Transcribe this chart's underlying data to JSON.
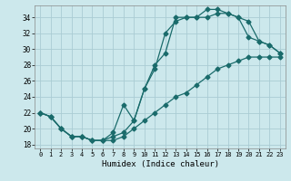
{
  "xlabel": "Humidex (Indice chaleur)",
  "bg_color": "#cce8ec",
  "grid_color": "#aaccd4",
  "line_color": "#1a6b6b",
  "xlim": [
    -0.5,
    23.5
  ],
  "ylim": [
    17.5,
    35.5
  ],
  "xticks": [
    0,
    1,
    2,
    3,
    4,
    5,
    6,
    7,
    8,
    9,
    10,
    11,
    12,
    13,
    14,
    15,
    16,
    17,
    18,
    19,
    20,
    21,
    22,
    23
  ],
  "yticks": [
    18,
    20,
    22,
    24,
    26,
    28,
    30,
    32,
    34
  ],
  "line1_x": [
    0,
    1,
    2,
    3,
    4,
    5,
    6,
    7,
    8,
    9,
    10,
    11,
    12,
    13,
    14,
    15,
    16,
    17,
    18,
    19,
    20,
    21,
    22,
    23
  ],
  "line1_y": [
    22.0,
    21.5,
    20.0,
    19.0,
    19.0,
    18.5,
    18.5,
    18.5,
    19.0,
    20.0,
    21.0,
    22.0,
    23.0,
    24.0,
    24.5,
    25.5,
    26.5,
    27.5,
    28.0,
    28.5,
    29.0,
    29.0,
    29.0,
    29.0
  ],
  "line2_x": [
    0,
    1,
    2,
    3,
    4,
    5,
    6,
    7,
    8,
    9,
    10,
    11,
    12,
    13,
    14,
    15,
    16,
    17,
    18,
    19,
    20,
    21,
    22,
    23
  ],
  "line2_y": [
    22.0,
    21.5,
    20.0,
    19.0,
    19.0,
    18.5,
    18.5,
    19.5,
    23.0,
    21.0,
    25.0,
    27.5,
    32.0,
    33.5,
    34.0,
    34.0,
    34.0,
    34.5,
    34.5,
    34.0,
    33.5,
    31.0,
    30.5,
    29.5
  ],
  "line3_x": [
    0,
    1,
    2,
    3,
    4,
    5,
    6,
    7,
    8,
    9,
    10,
    11,
    12,
    13,
    14,
    15,
    16,
    17,
    18,
    19,
    20,
    21,
    22,
    23
  ],
  "line3_y": [
    22.0,
    21.5,
    20.0,
    19.0,
    19.0,
    18.5,
    18.5,
    19.0,
    19.5,
    21.0,
    25.0,
    28.0,
    29.5,
    34.0,
    34.0,
    34.0,
    35.0,
    35.0,
    34.5,
    34.0,
    31.5,
    31.0,
    30.5,
    29.5
  ]
}
